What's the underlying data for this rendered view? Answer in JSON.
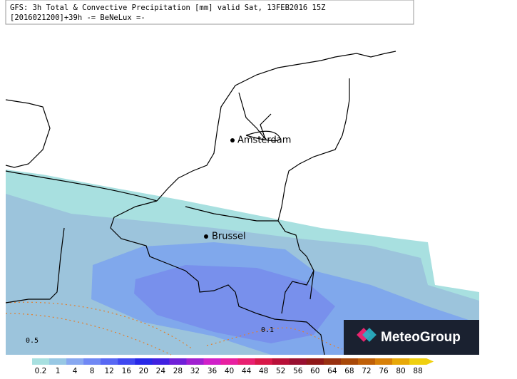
{
  "header": {
    "line1": "GFS: 3h Total & Convective Precipitation [mm] valid Sat, 13FEB2016 15Z",
    "line2": "[2016021200]+39h  -= BeNeLux =-"
  },
  "cities": [
    {
      "label": "Amsterdam"
    },
    {
      "label": "Brussel"
    }
  ],
  "contour_labels": [
    "0.5",
    "0.1"
  ],
  "colorbar": {
    "labels": [
      0.2,
      1,
      4,
      8,
      12,
      16,
      20,
      24,
      28,
      32,
      36,
      40,
      44,
      48,
      52,
      56,
      60,
      64,
      68,
      72,
      76,
      80,
      88
    ],
    "colors": [
      "#a8e0e0",
      "#98c8e4",
      "#88a8f0",
      "#7088f4",
      "#5868f4",
      "#4048f0",
      "#2828e8",
      "#4020e0",
      "#7020d8",
      "#a020d0",
      "#d020c8",
      "#e820a0",
      "#e82070",
      "#d81848",
      "#b81038",
      "#981030",
      "#901818",
      "#983010",
      "#a84808",
      "#c06008",
      "#d88008",
      "#e8a808",
      "#f0d010"
    ]
  },
  "logo": {
    "text": "MeteoGroup"
  }
}
